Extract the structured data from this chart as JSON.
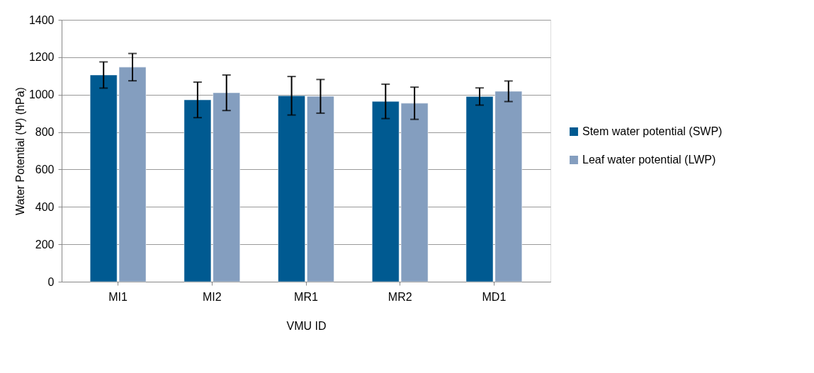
{
  "chart_data": {
    "type": "bar",
    "xlabel": "VMU ID",
    "ylabel": "Water Potential (Ψ)  (hPa)",
    "categories": [
      "MI1",
      "MI2",
      "MR1",
      "MR2",
      "MD1"
    ],
    "series": [
      {
        "name": "Stem water potential (SWP)",
        "color": "#005a91",
        "values": [
          1105,
          972,
          994,
          964,
          990
        ],
        "errors": [
          70,
          95,
          103,
          92,
          46
        ]
      },
      {
        "name": "Leaf water potential (LWP)",
        "color": "#849ebf",
        "values": [
          1147,
          1010,
          991,
          954,
          1018
        ],
        "errors": [
          73,
          95,
          90,
          86,
          55
        ]
      }
    ],
    "ylim": [
      0,
      1400
    ],
    "yticks": [
      0,
      200,
      400,
      600,
      800,
      1000,
      1200,
      1400
    ],
    "grid": "y",
    "legend": "right"
  }
}
